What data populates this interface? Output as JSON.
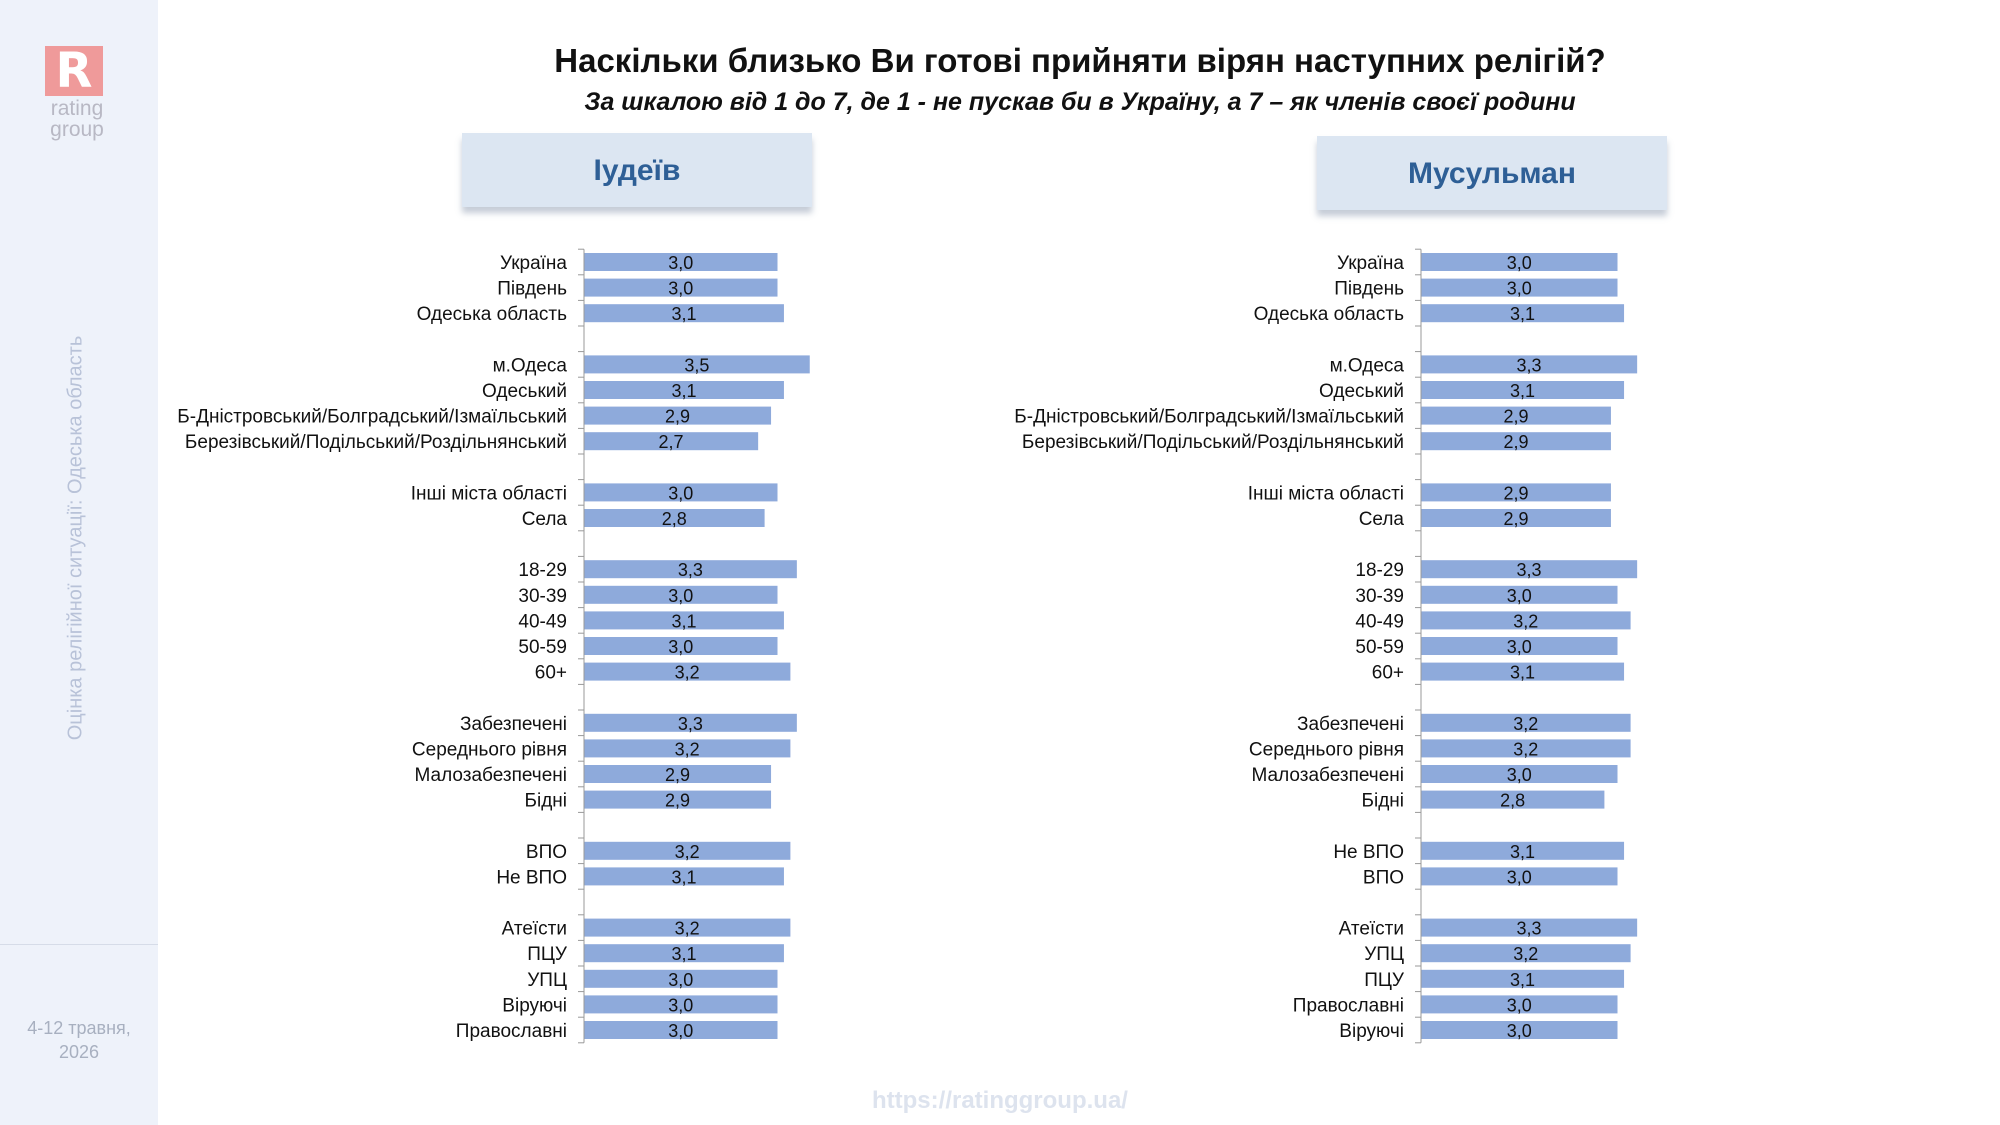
{
  "sidebar": {
    "logo_letter": "R",
    "logo_text": "rating group",
    "vertical_caption": "Оцінка релігійної ситуації: Одеська область",
    "date": "4-12 травня,\n2026"
  },
  "title": "Наскільки близько Ви готові прийняти вірян наступних релігій?",
  "subtitle": "За шкалою від 1 до 7, де 1 - не пускав би в Україну, а 7 – як членів своєї родини",
  "footer_url": "https://ratinggroup.ua/",
  "colors": {
    "bar": "#8eaadb",
    "axis": "#999999",
    "header_bg": "#dce6f2",
    "header_text": "#2e5f96"
  },
  "chart_data": [
    {
      "type": "bar",
      "orientation": "horizontal",
      "title": "Іудеїв",
      "xlim": [
        0,
        7
      ],
      "groups": [
        {
          "categories": [
            "Україна",
            "Південь",
            "Одеська область"
          ],
          "values": [
            3.0,
            3.0,
            3.1
          ],
          "labels": [
            "3,0",
            "3,0",
            "3,1"
          ]
        },
        {
          "categories": [
            "м.Одеса",
            "Одеський",
            "Б-Дністровський/Болградський/Ізмаїльський",
            "Березівський/Подільський/Роздільнянський"
          ],
          "values": [
            3.5,
            3.1,
            2.9,
            2.7
          ],
          "labels": [
            "3,5",
            "3,1",
            "2,9",
            "2,7"
          ]
        },
        {
          "categories": [
            "Інші міста області",
            "Села"
          ],
          "values": [
            3.0,
            2.8
          ],
          "labels": [
            "3,0",
            "2,8"
          ]
        },
        {
          "categories": [
            "18-29",
            "30-39",
            "40-49",
            "50-59",
            "60+"
          ],
          "values": [
            3.3,
            3.0,
            3.1,
            3.0,
            3.2
          ],
          "labels": [
            "3,3",
            "3,0",
            "3,1",
            "3,0",
            "3,2"
          ]
        },
        {
          "categories": [
            "Забезпечені",
            "Середнього рівня",
            "Малозабезпечені",
            "Бідні"
          ],
          "values": [
            3.3,
            3.2,
            2.9,
            2.9
          ],
          "labels": [
            "3,3",
            "3,2",
            "2,9",
            "2,9"
          ]
        },
        {
          "categories": [
            "ВПО",
            "Не ВПО"
          ],
          "values": [
            3.2,
            3.1
          ],
          "labels": [
            "3,2",
            "3,1"
          ]
        },
        {
          "categories": [
            "Атеїсти",
            "ПЦУ",
            "УПЦ",
            "Віруючі",
            "Православні"
          ],
          "values": [
            3.2,
            3.1,
            3.0,
            3.0,
            3.0
          ],
          "labels": [
            "3,2",
            "3,1",
            "3,0",
            "3,0",
            "3,0"
          ]
        }
      ]
    },
    {
      "type": "bar",
      "orientation": "horizontal",
      "title": "Мусульман",
      "xlim": [
        0,
        7
      ],
      "groups": [
        {
          "categories": [
            "Україна",
            "Південь",
            "Одеська область"
          ],
          "values": [
            3.0,
            3.0,
            3.1
          ],
          "labels": [
            "3,0",
            "3,0",
            "3,1"
          ]
        },
        {
          "categories": [
            "м.Одеса",
            "Одеський",
            "Б-Дністровський/Болградський/Ізмаїльський",
            "Березівський/Подільський/Роздільнянський"
          ],
          "values": [
            3.3,
            3.1,
            2.9,
            2.9
          ],
          "labels": [
            "3,3",
            "3,1",
            "2,9",
            "2,9"
          ]
        },
        {
          "categories": [
            "Інші міста області",
            "Села"
          ],
          "values": [
            2.9,
            2.9
          ],
          "labels": [
            "2,9",
            "2,9"
          ]
        },
        {
          "categories": [
            "18-29",
            "30-39",
            "40-49",
            "50-59",
            "60+"
          ],
          "values": [
            3.3,
            3.0,
            3.2,
            3.0,
            3.1
          ],
          "labels": [
            "3,3",
            "3,0",
            "3,2",
            "3,0",
            "3,1"
          ]
        },
        {
          "categories": [
            "Забезпечені",
            "Середнього рівня",
            "Малозабезпечені",
            "Бідні"
          ],
          "values": [
            3.2,
            3.2,
            3.0,
            2.8
          ],
          "labels": [
            "3,2",
            "3,2",
            "3,0",
            "2,8"
          ]
        },
        {
          "categories": [
            "Не ВПО",
            "ВПО"
          ],
          "values": [
            3.1,
            3.0
          ],
          "labels": [
            "3,1",
            "3,0"
          ]
        },
        {
          "categories": [
            "Атеїсти",
            "УПЦ",
            "ПЦУ",
            "Православні",
            "Віруючі"
          ],
          "values": [
            3.3,
            3.2,
            3.1,
            3.0,
            3.0
          ],
          "labels": [
            "3,3",
            "3,2",
            "3,1",
            "3,0",
            "3,0"
          ]
        }
      ]
    }
  ]
}
